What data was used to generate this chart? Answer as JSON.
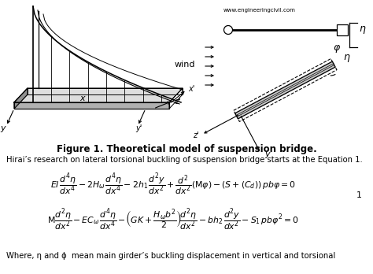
{
  "background_color": "#ffffff",
  "figure_caption": "Figure 1. Theoretical model of suspension bridge.",
  "intro_text": "Hirai’s research on lateral torsional buckling of suspension bridge starts at the Equation 1.",
  "bottom_text": "Where, η and ϕ  mean main girder’s buckling displacement in vertical and torsional",
  "eq_number": "1",
  "website": "www.engineeringcivil.com",
  "text_color": "#000000",
  "fig_size": [
    4.74,
    3.48
  ],
  "dpi": 100
}
